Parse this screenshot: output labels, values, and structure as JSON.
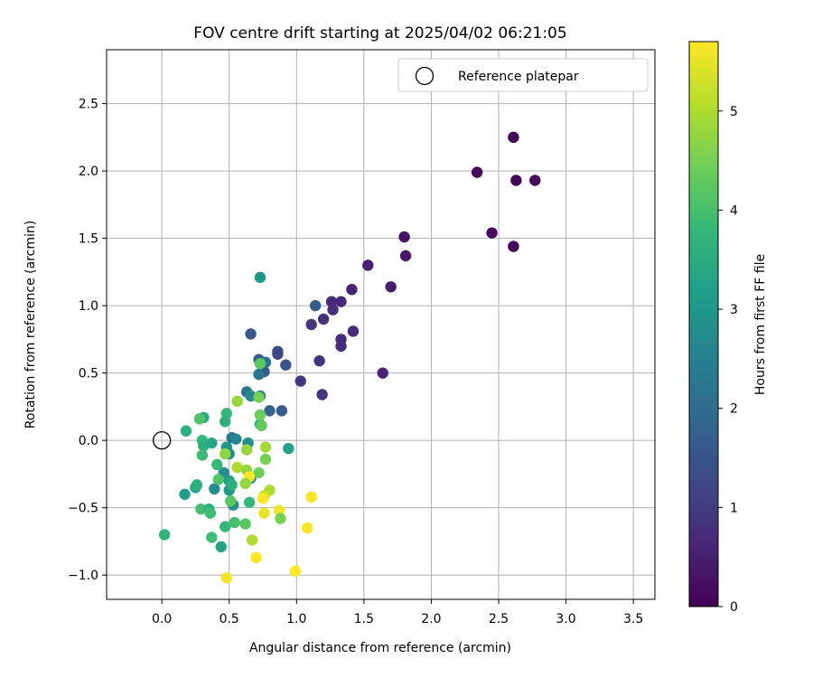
{
  "chart_data": {
    "type": "scatter",
    "title": "FOV centre drift starting at 2025/04/02 06:21:05",
    "xlabel": "Angular distance from reference (arcmin)",
    "ylabel": "Rotation from reference (arcmin)",
    "xlim": [
      -0.41,
      3.66
    ],
    "ylim": [
      -1.18,
      2.9
    ],
    "xticks": [
      0.0,
      0.5,
      1.0,
      1.5,
      2.0,
      2.5,
      3.0,
      3.5
    ],
    "xtick_labels": [
      "0.0",
      "0.5",
      "1.0",
      "1.5",
      "2.0",
      "2.5",
      "3.0",
      "3.5"
    ],
    "yticks": [
      -1.0,
      -0.5,
      0.0,
      0.5,
      1.0,
      1.5,
      2.0,
      2.5
    ],
    "ytick_labels": [
      "−1.0",
      "−0.5",
      "0.0",
      "0.5",
      "1.0",
      "1.5",
      "2.0",
      "2.5"
    ],
    "grid": true,
    "legend": {
      "position": "upper right",
      "entries": [
        "Reference platepar"
      ]
    },
    "reference_point": {
      "x": 0.0,
      "y": 0.0,
      "marker": "open-circle"
    },
    "colorbar": {
      "label": "Hours from first FF file",
      "range": [
        0,
        5.7
      ],
      "ticks": [
        0,
        1,
        2,
        3,
        4,
        5
      ],
      "tick_labels": [
        "0",
        "1",
        "2",
        "3",
        "4",
        "5"
      ],
      "colormap": "viridis"
    },
    "colormap_stops": [
      "#440154",
      "#482878",
      "#3e4989",
      "#31688e",
      "#26828e",
      "#1f9e89",
      "#35b779",
      "#6ece58",
      "#b5de2b",
      "#fde725"
    ],
    "points": [
      {
        "x": 2.61,
        "y": 2.25,
        "h": 0.05
      },
      {
        "x": 2.34,
        "y": 1.99,
        "h": 0.1
      },
      {
        "x": 2.63,
        "y": 1.93,
        "h": 0.08
      },
      {
        "x": 2.77,
        "y": 1.93,
        "h": 0.05
      },
      {
        "x": 2.45,
        "y": 1.54,
        "h": 0.12
      },
      {
        "x": 2.61,
        "y": 1.44,
        "h": 0.1
      },
      {
        "x": 1.8,
        "y": 1.51,
        "h": 0.3
      },
      {
        "x": 1.81,
        "y": 1.37,
        "h": 0.35
      },
      {
        "x": 1.53,
        "y": 1.3,
        "h": 0.5
      },
      {
        "x": 1.7,
        "y": 1.14,
        "h": 0.45
      },
      {
        "x": 1.41,
        "y": 1.12,
        "h": 0.55
      },
      {
        "x": 1.33,
        "y": 1.03,
        "h": 0.65
      },
      {
        "x": 1.26,
        "y": 1.03,
        "h": 0.7
      },
      {
        "x": 1.27,
        "y": 0.97,
        "h": 0.75
      },
      {
        "x": 1.14,
        "y": 1.0,
        "h": 1.7
      },
      {
        "x": 1.2,
        "y": 0.9,
        "h": 0.8
      },
      {
        "x": 1.11,
        "y": 0.86,
        "h": 0.85
      },
      {
        "x": 1.42,
        "y": 0.81,
        "h": 0.7
      },
      {
        "x": 1.33,
        "y": 0.75,
        "h": 0.7
      },
      {
        "x": 1.33,
        "y": 0.7,
        "h": 0.75
      },
      {
        "x": 1.17,
        "y": 0.59,
        "h": 0.85
      },
      {
        "x": 1.64,
        "y": 0.5,
        "h": 0.55
      },
      {
        "x": 1.03,
        "y": 0.44,
        "h": 0.9
      },
      {
        "x": 1.19,
        "y": 0.34,
        "h": 0.85
      },
      {
        "x": 0.66,
        "y": 0.79,
        "h": 1.6
      },
      {
        "x": 0.86,
        "y": 0.66,
        "h": 1.5
      },
      {
        "x": 0.86,
        "y": 0.64,
        "h": 1.2
      },
      {
        "x": 0.72,
        "y": 0.6,
        "h": 1.7
      },
      {
        "x": 0.77,
        "y": 0.58,
        "h": 2.2
      },
      {
        "x": 0.92,
        "y": 0.56,
        "h": 1.5
      },
      {
        "x": 0.76,
        "y": 0.51,
        "h": 1.6
      },
      {
        "x": 0.72,
        "y": 0.49,
        "h": 2.3
      },
      {
        "x": 0.73,
        "y": 1.21,
        "h": 3.0
      },
      {
        "x": 0.63,
        "y": 0.36,
        "h": 2.2
      },
      {
        "x": 0.66,
        "y": 0.33,
        "h": 2.7
      },
      {
        "x": 0.73,
        "y": 0.33,
        "h": 2.3
      },
      {
        "x": 0.8,
        "y": 0.22,
        "h": 1.8
      },
      {
        "x": 0.89,
        "y": 0.22,
        "h": 1.6
      },
      {
        "x": 0.73,
        "y": 0.12,
        "h": 3.3
      },
      {
        "x": 0.94,
        "y": -0.06,
        "h": 3.3
      },
      {
        "x": 0.52,
        "y": 0.02,
        "h": 2.2
      },
      {
        "x": 0.55,
        "y": 0.01,
        "h": 2.6
      },
      {
        "x": 0.64,
        "y": -0.02,
        "h": 2.8
      },
      {
        "x": 0.48,
        "y": -0.05,
        "h": 3.0
      },
      {
        "x": 0.5,
        "y": -0.1,
        "h": 2.9
      },
      {
        "x": 0.66,
        "y": -0.28,
        "h": 2.7
      },
      {
        "x": 0.5,
        "y": -0.3,
        "h": 3.3
      },
      {
        "x": 0.39,
        "y": -0.36,
        "h": 2.8
      },
      {
        "x": 0.46,
        "y": -0.24,
        "h": 2.8
      },
      {
        "x": 0.5,
        "y": -0.37,
        "h": 3.1
      },
      {
        "x": 0.53,
        "y": -0.48,
        "h": 2.9
      },
      {
        "x": 0.17,
        "y": -0.4,
        "h": 3.2
      },
      {
        "x": 0.25,
        "y": -0.35,
        "h": 3.3
      },
      {
        "x": 0.26,
        "y": -0.33,
        "h": 3.6
      },
      {
        "x": 0.44,
        "y": -0.79,
        "h": 3.3
      },
      {
        "x": 0.02,
        "y": -0.7,
        "h": 3.7
      },
      {
        "x": 0.18,
        "y": 0.07,
        "h": 3.6
      },
      {
        "x": 0.31,
        "y": 0.17,
        "h": 3.5
      },
      {
        "x": 0.28,
        "y": 0.16,
        "h": 4.1
      },
      {
        "x": 0.48,
        "y": 0.2,
        "h": 3.8
      },
      {
        "x": 0.47,
        "y": 0.14,
        "h": 3.6
      },
      {
        "x": 0.3,
        "y": 0.0,
        "h": 3.8
      },
      {
        "x": 0.31,
        "y": -0.04,
        "h": 3.6
      },
      {
        "x": 0.37,
        "y": -0.02,
        "h": 3.4
      },
      {
        "x": 0.41,
        "y": -0.18,
        "h": 3.8
      },
      {
        "x": 0.3,
        "y": -0.11,
        "h": 3.9
      },
      {
        "x": 0.42,
        "y": -0.29,
        "h": 4.1
      },
      {
        "x": 0.52,
        "y": -0.33,
        "h": 3.6
      },
      {
        "x": 0.29,
        "y": -0.51,
        "h": 4.0
      },
      {
        "x": 0.35,
        "y": -0.51,
        "h": 3.6
      },
      {
        "x": 0.36,
        "y": -0.54,
        "h": 3.9
      },
      {
        "x": 0.51,
        "y": -0.45,
        "h": 4.2
      },
      {
        "x": 0.65,
        "y": -0.46,
        "h": 3.8
      },
      {
        "x": 0.37,
        "y": -0.72,
        "h": 3.9
      },
      {
        "x": 0.47,
        "y": -0.64,
        "h": 3.8
      },
      {
        "x": 0.54,
        "y": -0.61,
        "h": 4.0
      },
      {
        "x": 0.62,
        "y": -0.62,
        "h": 4.2
      },
      {
        "x": 0.72,
        "y": 0.32,
        "h": 4.5
      },
      {
        "x": 0.56,
        "y": 0.29,
        "h": 4.8
      },
      {
        "x": 0.73,
        "y": 0.19,
        "h": 4.4
      },
      {
        "x": 0.73,
        "y": 0.57,
        "h": 4.2
      },
      {
        "x": 0.74,
        "y": 0.11,
        "h": 4.3
      },
      {
        "x": 0.47,
        "y": -0.1,
        "h": 4.7
      },
      {
        "x": 0.63,
        "y": -0.07,
        "h": 4.8
      },
      {
        "x": 0.77,
        "y": -0.05,
        "h": 4.9
      },
      {
        "x": 0.77,
        "y": -0.14,
        "h": 4.5
      },
      {
        "x": 0.56,
        "y": -0.2,
        "h": 5.0
      },
      {
        "x": 0.63,
        "y": -0.22,
        "h": 4.8
      },
      {
        "x": 0.72,
        "y": -0.24,
        "h": 4.4
      },
      {
        "x": 0.65,
        "y": -0.27,
        "h": 5.7
      },
      {
        "x": 0.62,
        "y": -0.32,
        "h": 4.8
      },
      {
        "x": 0.8,
        "y": -0.37,
        "h": 5.0
      },
      {
        "x": 0.76,
        "y": -0.41,
        "h": 5.2
      },
      {
        "x": 0.75,
        "y": -0.43,
        "h": 5.7
      },
      {
        "x": 0.76,
        "y": -0.54,
        "h": 5.5
      },
      {
        "x": 0.87,
        "y": -0.52,
        "h": 5.6
      },
      {
        "x": 0.88,
        "y": -0.58,
        "h": 4.5
      },
      {
        "x": 1.11,
        "y": -0.42,
        "h": 5.6
      },
      {
        "x": 1.08,
        "y": -0.65,
        "h": 5.6
      },
      {
        "x": 0.67,
        "y": -0.74,
        "h": 5.0
      },
      {
        "x": 0.7,
        "y": -0.87,
        "h": 5.7
      },
      {
        "x": 0.99,
        "y": -0.97,
        "h": 5.7
      },
      {
        "x": 0.48,
        "y": -1.02,
        "h": 5.6
      }
    ]
  }
}
